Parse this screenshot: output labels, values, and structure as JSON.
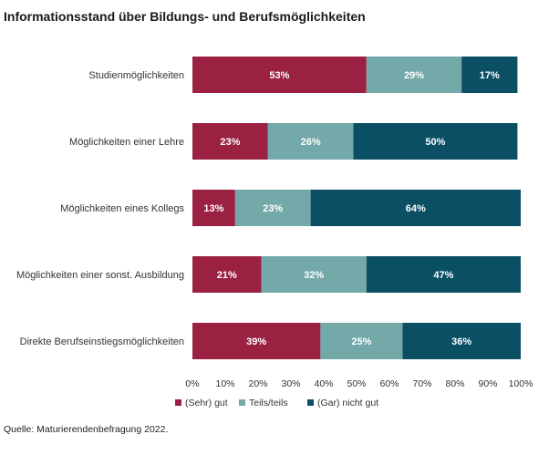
{
  "title": "Informationsstand über Bildungs- und Berufsmöglichkeiten",
  "source": "Quelle: Maturierendenbefragung 2022.",
  "colors": {
    "sehr_gut": "#9b2143",
    "teils": "#74a9a9",
    "nicht_gut": "#0b4f65",
    "axis_text": "#333333"
  },
  "chart_data": {
    "type": "bar",
    "orientation": "horizontal",
    "stacked": true,
    "categories": [
      "Studienmöglichkeiten",
      "Möglichkeiten einer Lehre",
      "Möglichkeiten eines Kollegs",
      "Möglichkeiten einer sonst. Ausbildung",
      "Direkte Berufseinstiegsmöglichkeiten"
    ],
    "series": [
      {
        "name": "(Sehr) gut",
        "values": [
          53,
          23,
          13,
          21,
          39
        ],
        "labels": [
          "53%",
          "23%",
          "13%",
          "21%",
          "39%"
        ]
      },
      {
        "name": "Teils/teils",
        "values": [
          29,
          26,
          23,
          32,
          25
        ],
        "labels": [
          "29%",
          "26%",
          "23%",
          "32%",
          "25%"
        ]
      },
      {
        "name": "(Gar) nicht gut",
        "values": [
          17,
          50,
          64,
          47,
          36
        ],
        "labels": [
          "17%",
          "50%",
          "64%",
          "47%",
          "36%"
        ]
      }
    ],
    "xlim": [
      0,
      100
    ],
    "xticks": [
      "0%",
      "10%",
      "20%",
      "30%",
      "40%",
      "50%",
      "60%",
      "70%",
      "80%",
      "90%",
      "100%"
    ],
    "grid": false,
    "legend_position": "bottom"
  }
}
